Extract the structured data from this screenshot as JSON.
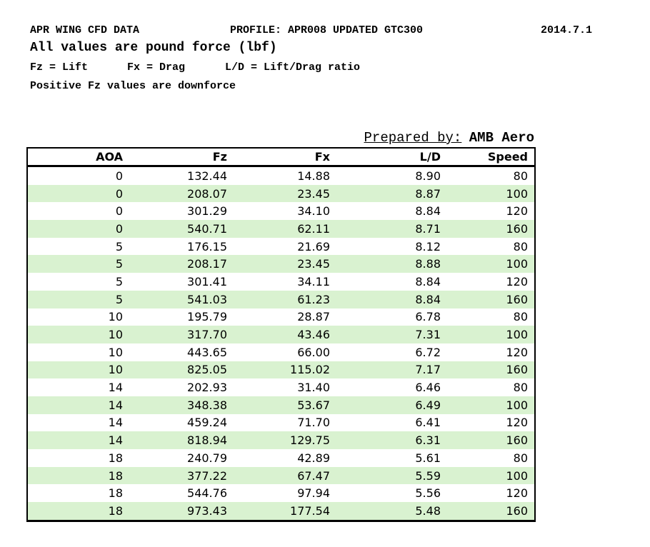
{
  "header": {
    "title": "APR WING CFD DATA",
    "profile": "PROFILE: APR008 UPDATED GTC300",
    "date": "2014.7.1",
    "subtitle": "All values are pound force (lbf)",
    "legend": {
      "fz": "Fz = Lift",
      "fx": "Fx = Drag",
      "ld": "L/D = Lift/Drag ratio"
    },
    "note": "Positive Fz values are downforce"
  },
  "prepared_by": {
    "label": "Prepared by:",
    "value": "AMB Aero"
  },
  "table": {
    "columns": [
      "AOA",
      "Fz",
      "Fx",
      "L/D",
      "Speed"
    ],
    "rows": [
      [
        "0",
        "132.44",
        "14.88",
        "8.90",
        "80"
      ],
      [
        "0",
        "208.07",
        "23.45",
        "8.87",
        "100"
      ],
      [
        "0",
        "301.29",
        "34.10",
        "8.84",
        "120"
      ],
      [
        "0",
        "540.71",
        "62.11",
        "8.71",
        "160"
      ],
      [
        "5",
        "176.15",
        "21.69",
        "8.12",
        "80"
      ],
      [
        "5",
        "208.17",
        "23.45",
        "8.88",
        "100"
      ],
      [
        "5",
        "301.41",
        "34.11",
        "8.84",
        "120"
      ],
      [
        "5",
        "541.03",
        "61.23",
        "8.84",
        "160"
      ],
      [
        "10",
        "195.79",
        "28.87",
        "6.78",
        "80"
      ],
      [
        "10",
        "317.70",
        "43.46",
        "7.31",
        "100"
      ],
      [
        "10",
        "443.65",
        "66.00",
        "6.72",
        "120"
      ],
      [
        "10",
        "825.05",
        "115.02",
        "7.17",
        "160"
      ],
      [
        "14",
        "202.93",
        "31.40",
        "6.46",
        "80"
      ],
      [
        "14",
        "348.38",
        "53.67",
        "6.49",
        "100"
      ],
      [
        "14",
        "459.24",
        "71.70",
        "6.41",
        "120"
      ],
      [
        "14",
        "818.94",
        "129.75",
        "6.31",
        "160"
      ],
      [
        "18",
        "240.79",
        "42.89",
        "5.61",
        "80"
      ],
      [
        "18",
        "377.22",
        "67.47",
        "5.59",
        "100"
      ],
      [
        "18",
        "544.76",
        "97.94",
        "5.56",
        "120"
      ],
      [
        "18",
        "973.43",
        "177.54",
        "5.48",
        "160"
      ]
    ],
    "colors": {
      "stripe": "#d9f2d0",
      "border": "#000000",
      "text": "#000000",
      "background": "#ffffff"
    }
  }
}
